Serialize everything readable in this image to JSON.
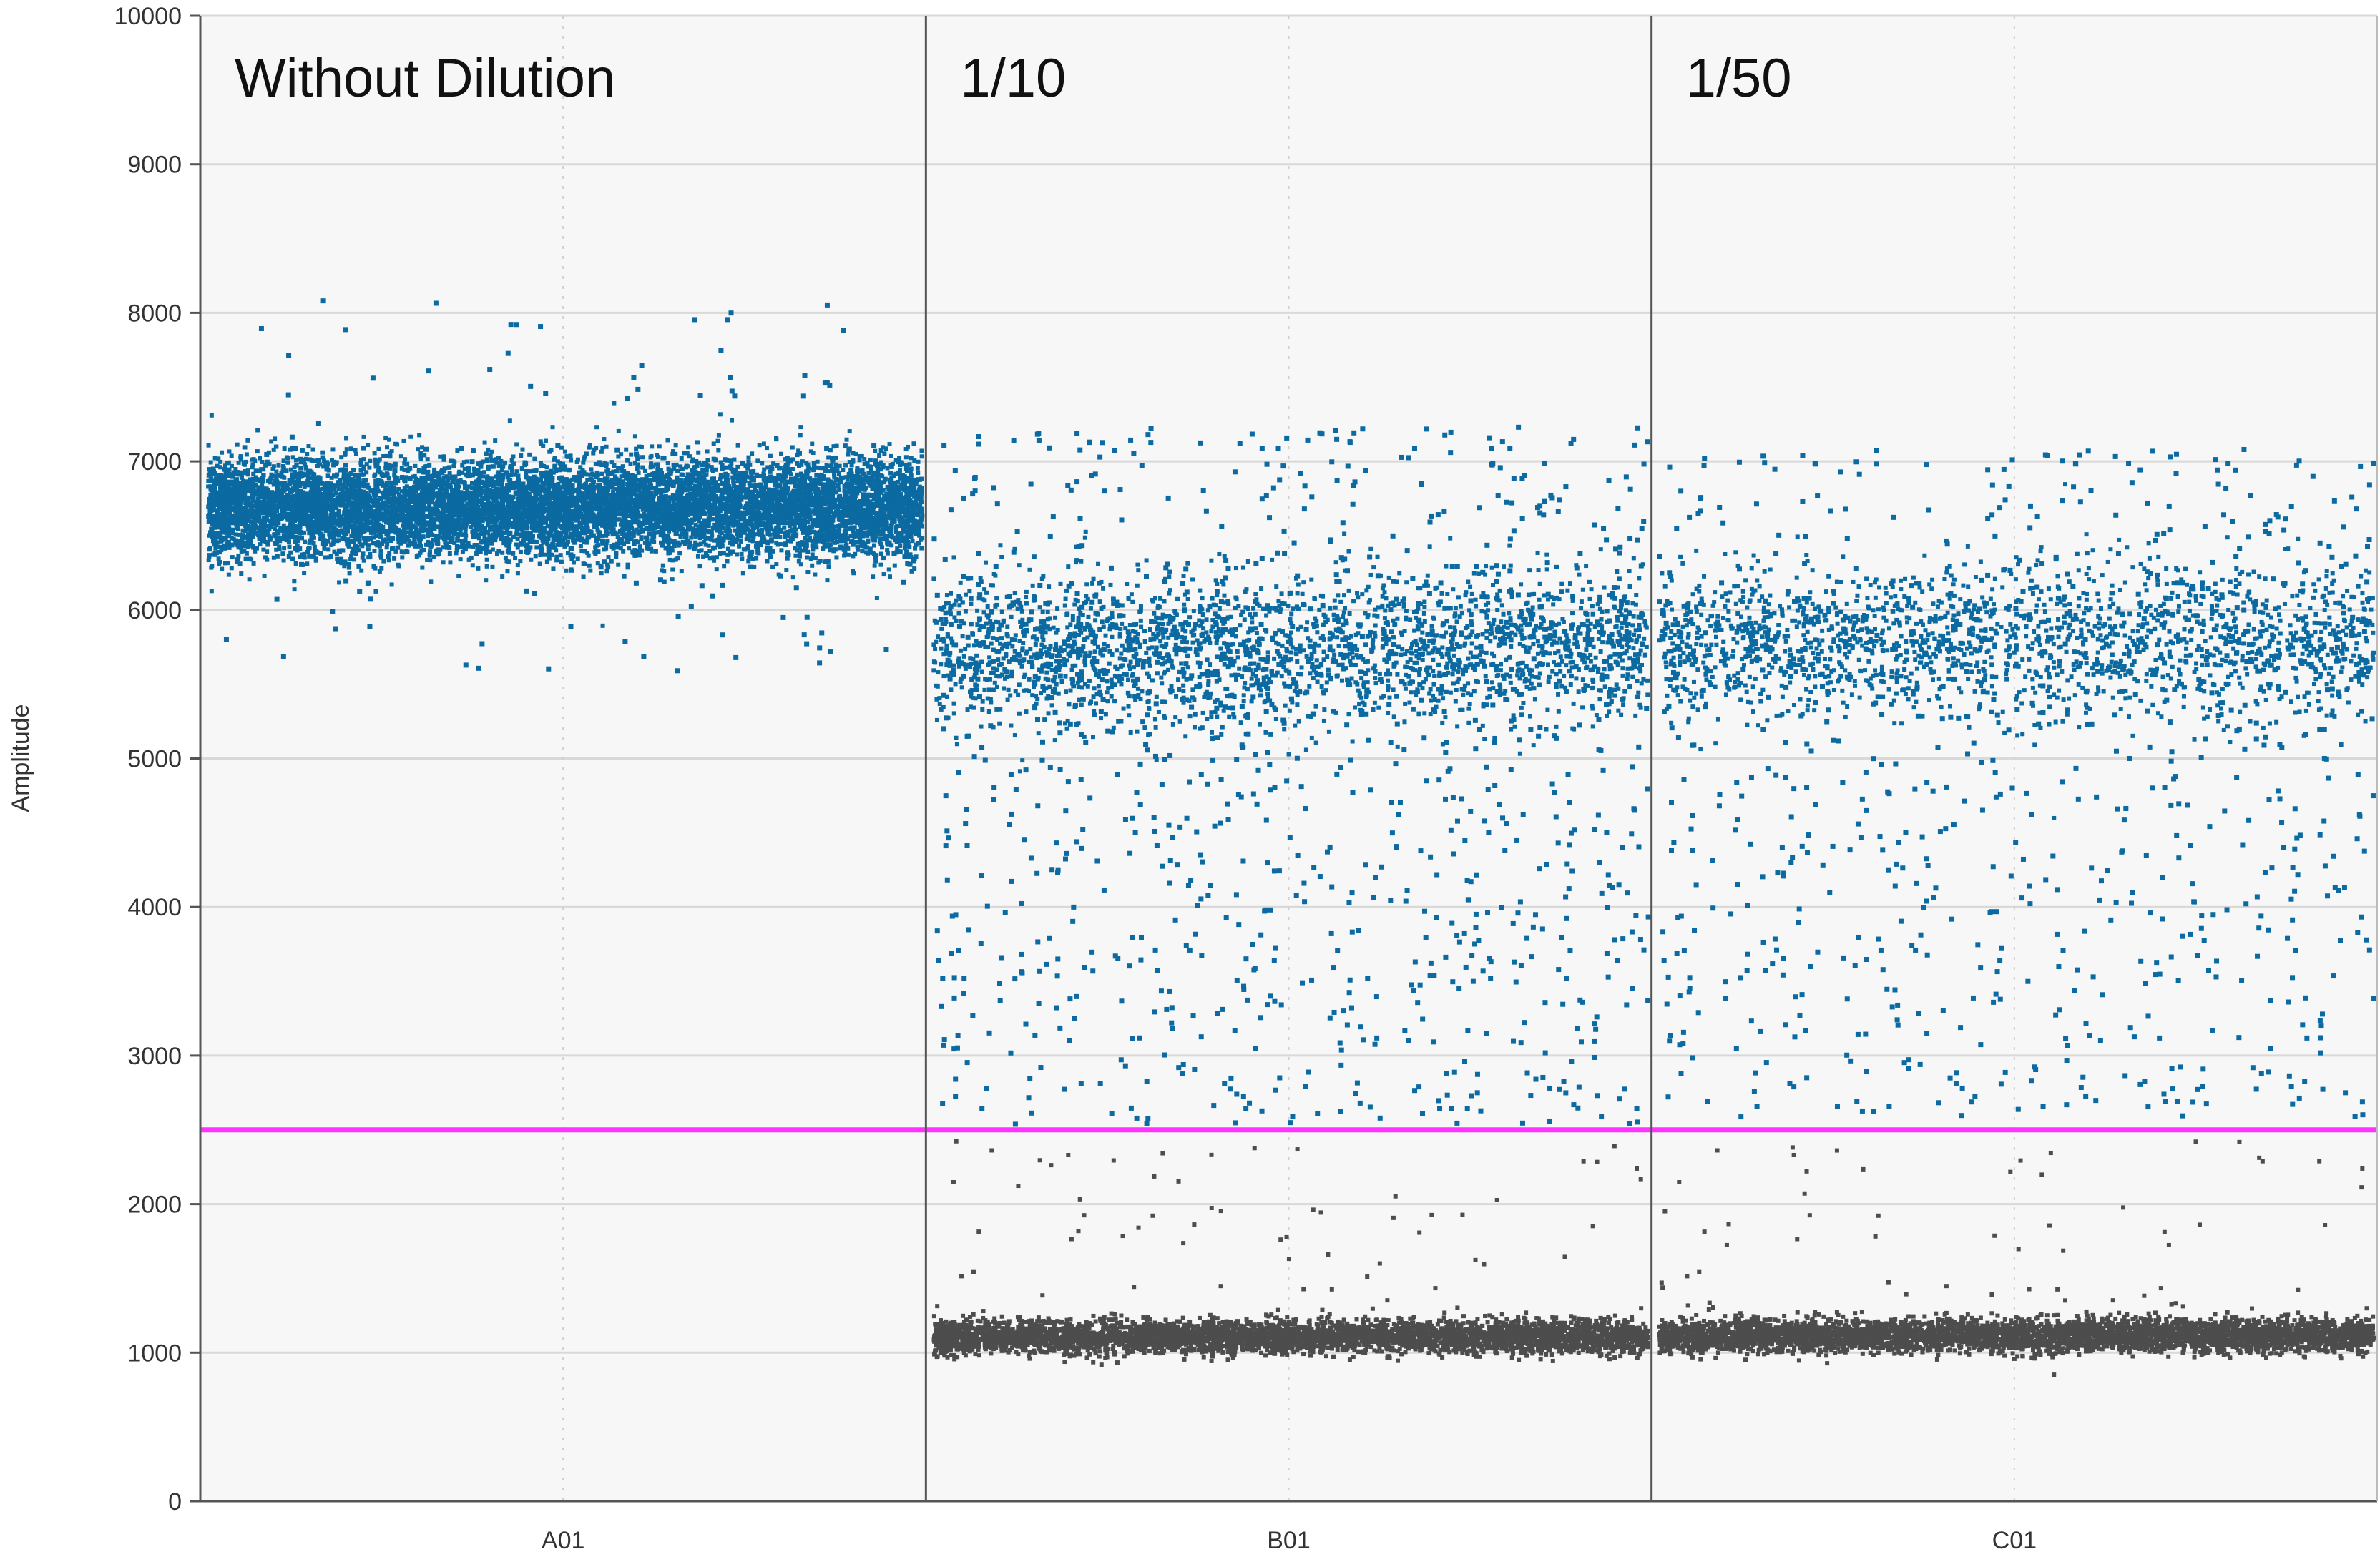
{
  "chart_data": {
    "type": "scatter",
    "title": "",
    "xlabel": "",
    "ylabel": "Amplitude",
    "ylim": [
      0,
      10000
    ],
    "yticks": [
      0,
      1000,
      2000,
      3000,
      4000,
      5000,
      6000,
      7000,
      8000,
      9000,
      10000
    ],
    "grid": true,
    "threshold": 2500,
    "threshold_color": "#ff33ff",
    "positive_color": "#0a6aa1",
    "negative_color": "#4d4d4d",
    "panels": [
      {
        "well": "A01",
        "annotation": "Without Dilution",
        "positive_band": {
          "center": 6700,
          "spread": 300,
          "count": 9000
        },
        "positive_scatter": {
          "low": 5600,
          "high": 8100,
          "count": 120
        },
        "negative_band": null,
        "negative_scatter": null
      },
      {
        "well": "B01",
        "annotation": "1/10",
        "positive_band": {
          "center": 5750,
          "spread": 450,
          "count": 2600
        },
        "positive_scatter": {
          "low": 2550,
          "high": 7250,
          "count": 900
        },
        "negative_band": {
          "center": 1120,
          "spread": 110,
          "count": 4500
        },
        "negative_scatter": {
          "low": 1300,
          "high": 2450,
          "count": 60
        }
      },
      {
        "well": "C01",
        "annotation": "1/50",
        "positive_band": {
          "center": 5800,
          "spread": 450,
          "count": 2000
        },
        "positive_scatter": {
          "low": 2600,
          "high": 7100,
          "count": 700
        },
        "negative_band": {
          "center": 1130,
          "spread": 110,
          "count": 4500
        },
        "negative_scatter": {
          "low": 1300,
          "high": 2450,
          "count": 55
        }
      }
    ]
  }
}
